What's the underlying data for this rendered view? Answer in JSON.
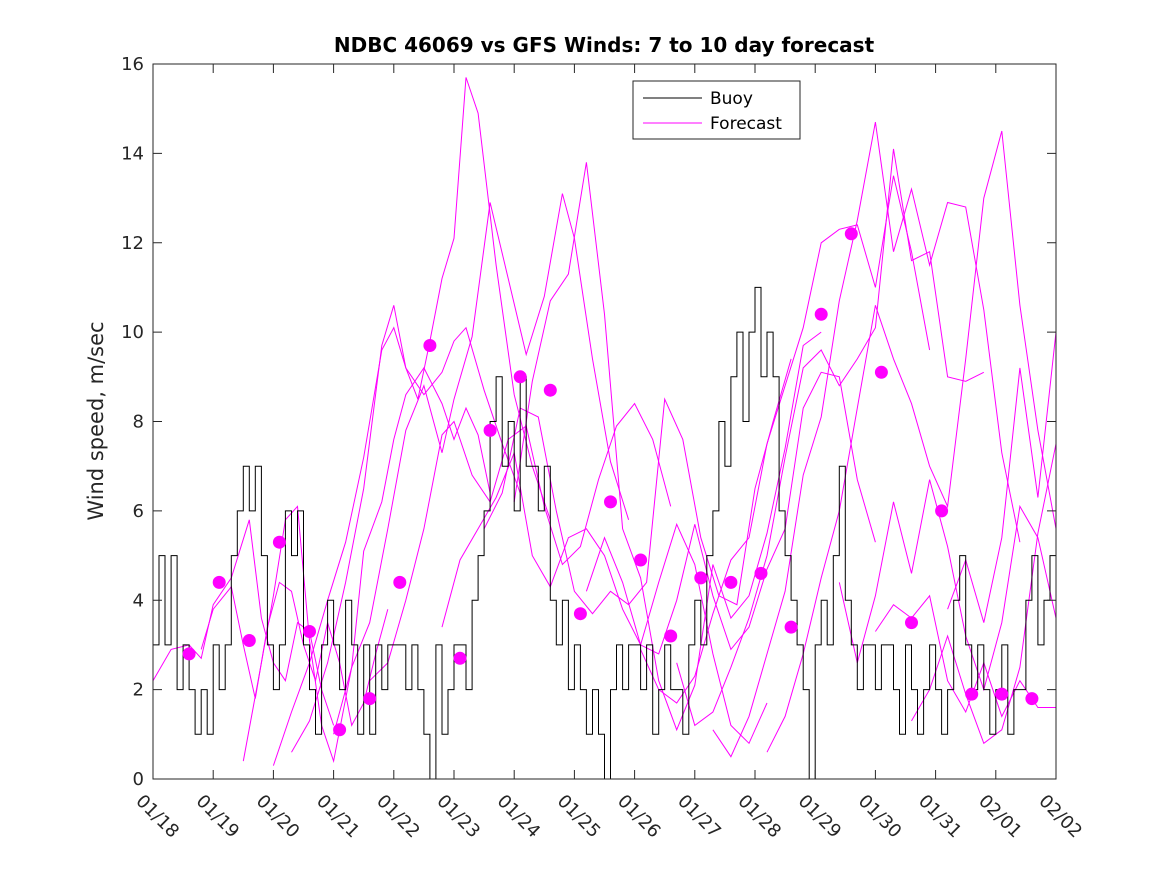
{
  "chart_data": {
    "type": "line",
    "title": "NDBC 46069 vs GFS Winds: 7 to 10 day forecast",
    "xlabel": "",
    "ylabel": "Wind speed, m/sec",
    "xlim": [
      0,
      15
    ],
    "ylim": [
      0,
      16
    ],
    "x_tick_values": [
      0,
      1,
      2,
      3,
      4,
      5,
      6,
      7,
      8,
      9,
      10,
      11,
      12,
      13,
      14,
      15
    ],
    "x_tick_labels": [
      "01/18",
      "01/19",
      "01/20",
      "01/21",
      "01/22",
      "01/23",
      "01/24",
      "01/25",
      "01/26",
      "01/27",
      "01/28",
      "01/29",
      "01/30",
      "01/31",
      "02/01",
      "02/02"
    ],
    "y_ticks": [
      0,
      2,
      4,
      6,
      8,
      10,
      12,
      14,
      16
    ],
    "legend": {
      "location": "top-center",
      "entries": [
        "Buoy",
        "Forecast"
      ]
    },
    "colors": {
      "buoy": "#000000",
      "forecast": "#ff00ff",
      "axes": "#262626"
    },
    "buoy": {
      "name": "Buoy",
      "x": [
        0.0,
        0.1,
        0.2,
        0.3,
        0.4,
        0.5,
        0.6,
        0.7,
        0.8,
        0.9,
        1.0,
        1.1,
        1.2,
        1.3,
        1.4,
        1.5,
        1.6,
        1.7,
        1.8,
        1.9,
        2.0,
        2.1,
        2.2,
        2.3,
        2.4,
        2.5,
        2.6,
        2.7,
        2.8,
        2.9,
        3.0,
        3.1,
        3.2,
        3.3,
        3.4,
        3.5,
        3.6,
        3.7,
        3.8,
        3.9,
        4.0,
        4.1,
        4.2,
        4.3,
        4.4,
        4.5,
        4.6,
        4.7,
        4.8,
        4.9,
        5.0,
        5.1,
        5.2,
        5.3,
        5.4,
        5.5,
        5.6,
        5.7,
        5.8,
        5.9,
        6.0,
        6.1,
        6.2,
        6.3,
        6.4,
        6.5,
        6.6,
        6.7,
        6.8,
        6.9,
        7.0,
        7.1,
        7.2,
        7.3,
        7.4,
        7.5,
        7.6,
        7.7,
        7.8,
        7.9,
        8.0,
        8.1,
        8.2,
        8.3,
        8.4,
        8.5,
        8.6,
        8.7,
        8.8,
        8.9,
        9.0,
        9.1,
        9.2,
        9.3,
        9.4,
        9.5,
        9.6,
        9.7,
        9.8,
        9.9,
        10.0,
        10.1,
        10.2,
        10.3,
        10.4,
        10.5,
        10.6,
        10.7,
        10.8,
        10.9,
        11.0,
        11.1,
        11.2,
        11.3,
        11.4,
        11.5,
        11.6,
        11.7,
        11.8,
        11.9,
        12.0,
        12.1,
        12.2,
        12.3,
        12.4,
        12.5,
        12.6,
        12.7,
        12.8,
        12.9,
        13.0,
        13.1,
        13.2,
        13.3,
        13.4,
        13.5,
        13.6,
        13.7,
        13.8,
        13.9,
        14.0,
        14.1,
        14.2,
        14.3,
        14.4,
        14.5,
        14.6,
        14.7,
        14.8,
        14.9,
        15.0
      ],
      "values": [
        3,
        5,
        3,
        5,
        2,
        3,
        2,
        1,
        2,
        1,
        3,
        2,
        3,
        5,
        6,
        7,
        6,
        7,
        5,
        3,
        2,
        3,
        6,
        5,
        6,
        3,
        2,
        1,
        3,
        4,
        3,
        2,
        4,
        3,
        1,
        3,
        1,
        3,
        2,
        3,
        3,
        3,
        2,
        3,
        2,
        1,
        0,
        3,
        1,
        2,
        3,
        3,
        2,
        4,
        5,
        6,
        8,
        9,
        7,
        8,
        6,
        9,
        7,
        7,
        6,
        7,
        4,
        3,
        4,
        2,
        3,
        2,
        1,
        2,
        1,
        0,
        2,
        3,
        2,
        3,
        3,
        2,
        3,
        1,
        2,
        3,
        2,
        2,
        1,
        3,
        4,
        3,
        5,
        6,
        8,
        7,
        9,
        10,
        8,
        10,
        11,
        9,
        10,
        9,
        6,
        5,
        4,
        3,
        2,
        0,
        3,
        4,
        3,
        5,
        7,
        4,
        3,
        2,
        3,
        3,
        2,
        3,
        3,
        2,
        1,
        3,
        2,
        1,
        2,
        3,
        2,
        1,
        2,
        4,
        5,
        3,
        2,
        3,
        2,
        1,
        2,
        3,
        1,
        2,
        2,
        4,
        5,
        3,
        4,
        5,
        4
      ]
    },
    "forecast_series": [
      {
        "name": "Forecast",
        "x": [
          0.0,
          0.3,
          0.6,
          0.8,
          1.0,
          1.3,
          1.6,
          1.8,
          2.0,
          2.2,
          2.4,
          2.6,
          2.8,
          3.0
        ],
        "values": [
          2.2,
          2.9,
          3.0,
          2.7,
          3.9,
          4.5,
          5.8,
          3.6,
          2.6,
          2.2,
          3.5,
          3.3,
          2.0,
          1.2
        ]
      },
      {
        "name": "Forecast",
        "x": [
          0.8,
          1.0,
          1.3,
          1.5,
          1.7,
          1.9,
          2.1,
          2.3,
          2.5,
          2.7,
          2.9,
          3.1,
          3.3,
          3.5,
          3.7,
          3.9
        ],
        "values": [
          2.9,
          3.8,
          4.3,
          3.0,
          1.8,
          3.4,
          4.4,
          4.2,
          3.0,
          2.2,
          3.5,
          2.6,
          1.2,
          1.7,
          2.8,
          3.8
        ]
      },
      {
        "name": "Forecast",
        "x": [
          1.5,
          1.8,
          2.0,
          2.2,
          2.4,
          2.6,
          2.8,
          3.0,
          3.3,
          3.5,
          3.8,
          4.0,
          4.2,
          4.5,
          4.8,
          5.0,
          5.2,
          5.4,
          5.6
        ],
        "values": [
          0.4,
          2.6,
          4.1,
          5.8,
          6.1,
          3.1,
          1.2,
          0.4,
          2.5,
          5.1,
          6.2,
          7.6,
          8.6,
          9.2,
          8.4,
          7.6,
          8.3,
          7.7,
          6.4
        ]
      },
      {
        "name": "Forecast",
        "x": [
          2.0,
          2.3,
          2.6,
          2.9,
          3.2,
          3.5,
          3.8,
          4.0,
          4.2,
          4.5,
          4.8,
          5.0,
          5.2,
          5.5,
          5.8,
          6.1
        ],
        "values": [
          0.3,
          1.5,
          2.6,
          4.0,
          5.3,
          7.2,
          9.6,
          10.1,
          9.2,
          8.6,
          9.1,
          9.8,
          10.1,
          8.7,
          7.5,
          6.4
        ]
      },
      {
        "name": "Forecast",
        "x": [
          2.3,
          2.6,
          2.9,
          3.2,
          3.5,
          3.8,
          4.0,
          4.2,
          4.4,
          4.6,
          4.8,
          5.0,
          5.2,
          5.4,
          5.7,
          6.0,
          6.3,
          6.6
        ],
        "values": [
          0.6,
          1.3,
          2.6,
          4.4,
          6.5,
          9.7,
          10.6,
          9.2,
          8.5,
          9.8,
          11.2,
          12.1,
          15.7,
          14.9,
          11.5,
          8.6,
          7.0,
          5.8
        ]
      },
      {
        "name": "Forecast",
        "x": [
          3.0,
          3.3,
          3.6,
          3.9,
          4.2,
          4.5,
          4.8,
          5.0,
          5.3,
          5.6,
          5.9,
          6.2,
          6.5,
          6.8,
          7.0,
          7.3,
          7.6,
          7.9
        ],
        "values": [
          1.0,
          2.5,
          3.5,
          5.6,
          7.8,
          8.8,
          7.3,
          8.5,
          9.9,
          12.9,
          11.2,
          9.5,
          10.8,
          13.1,
          12.1,
          9.4,
          7.1,
          5.8
        ]
      },
      {
        "name": "Forecast",
        "x": [
          3.6,
          3.9,
          4.2,
          4.5,
          4.8,
          5.0,
          5.3,
          5.6,
          5.9,
          6.2,
          6.5,
          6.8,
          7.1,
          7.4,
          7.7,
          8.0,
          8.3,
          8.6
        ],
        "values": [
          2.2,
          2.6,
          4.0,
          5.6,
          7.7,
          8.0,
          6.8,
          6.2,
          7.6,
          7.9,
          6.1,
          4.8,
          5.2,
          6.7,
          7.9,
          8.4,
          7.6,
          6.1
        ]
      },
      {
        "name": "Forecast",
        "x": [
          4.8,
          5.1,
          5.4,
          5.7,
          6.0,
          6.3,
          6.6,
          6.9,
          7.2,
          7.5,
          7.8,
          8.1,
          8.4,
          8.7,
          9.0,
          9.3,
          9.6,
          9.9,
          10.2
        ],
        "values": [
          3.4,
          4.9,
          5.6,
          6.3,
          7.3,
          5.0,
          4.3,
          5.4,
          5.6,
          5.0,
          3.8,
          3.0,
          4.4,
          5.7,
          4.8,
          2.8,
          1.2,
          0.8,
          1.7
        ]
      },
      {
        "name": "Forecast",
        "x": [
          5.5,
          5.8,
          6.1,
          6.4,
          6.7,
          7.0,
          7.3,
          7.6,
          7.9,
          8.2,
          8.5,
          8.8,
          9.1,
          9.4,
          9.7,
          10.0,
          10.3,
          10.6
        ],
        "values": [
          5.6,
          6.4,
          8.3,
          8.1,
          6.0,
          4.2,
          3.7,
          4.2,
          3.9,
          4.4,
          8.5,
          7.6,
          5.4,
          4.1,
          3.9,
          6.5,
          8.0,
          9.4
        ]
      },
      {
        "name": "Forecast",
        "x": [
          6.0,
          6.3,
          6.6,
          6.9,
          7.2,
          7.5,
          7.8,
          8.1,
          8.4,
          8.7,
          9.0,
          9.3,
          9.6,
          9.9,
          10.2,
          10.5,
          10.8,
          11.1
        ],
        "values": [
          6.2,
          8.9,
          10.7,
          11.3,
          13.8,
          10.4,
          5.6,
          4.5,
          2.2,
          1.1,
          2.1,
          4.8,
          3.6,
          4.1,
          5.5,
          7.4,
          9.7,
          10.0
        ]
      },
      {
        "name": "Forecast",
        "x": [
          7.2,
          7.5,
          7.8,
          8.1,
          8.4,
          8.7,
          9.0,
          9.3,
          9.6,
          9.9,
          10.2,
          10.5,
          10.8,
          11.1,
          11.4,
          11.7,
          12.0
        ],
        "values": [
          4.2,
          5.4,
          4.4,
          3.0,
          2.8,
          4.0,
          5.7,
          4.1,
          2.9,
          3.4,
          4.7,
          5.6,
          8.3,
          9.1,
          9.0,
          6.7,
          5.3
        ]
      },
      {
        "name": "Forecast",
        "x": [
          8.1,
          8.4,
          8.7,
          9.0,
          9.3,
          9.6,
          9.9,
          10.2,
          10.5,
          10.8,
          11.1,
          11.4,
          11.7,
          12.0,
          12.3,
          12.6,
          12.9
        ],
        "values": [
          2.9,
          2.0,
          1.7,
          2.3,
          3.7,
          4.9,
          5.4,
          7.5,
          8.8,
          10.1,
          12.0,
          12.3,
          12.4,
          11.0,
          13.5,
          11.8,
          9.6
        ]
      },
      {
        "name": "Forecast",
        "x": [
          8.7,
          9.0,
          9.3,
          9.6,
          9.9,
          10.2,
          10.5,
          10.8,
          11.1,
          11.4,
          11.7,
          12.0,
          12.3,
          12.6,
          12.9,
          13.2,
          13.5,
          13.8
        ],
        "values": [
          2.6,
          1.2,
          1.5,
          2.5,
          3.6,
          5.0,
          7.2,
          9.2,
          9.6,
          8.8,
          9.4,
          10.1,
          14.1,
          11.6,
          11.8,
          9.0,
          8.9,
          9.1
        ]
      },
      {
        "name": "Forecast",
        "x": [
          9.3,
          9.6,
          9.9,
          10.2,
          10.5,
          10.8,
          11.1,
          11.4,
          11.7,
          12.0,
          12.3,
          12.6,
          12.9,
          13.2,
          13.5,
          13.8,
          14.1,
          14.4
        ],
        "values": [
          1.1,
          0.5,
          1.4,
          2.8,
          4.2,
          6.8,
          8.1,
          10.7,
          12.5,
          14.7,
          11.8,
          13.2,
          11.5,
          12.9,
          12.8,
          10.5,
          7.3,
          5.3
        ]
      },
      {
        "name": "Forecast",
        "x": [
          10.2,
          10.5,
          10.8,
          11.1,
          11.4,
          11.7,
          12.0,
          12.3,
          12.6,
          12.9,
          13.2,
          13.5,
          13.8,
          14.1,
          14.4,
          14.7,
          15.0
        ],
        "values": [
          0.6,
          1.4,
          2.8,
          4.5,
          6.0,
          8.3,
          10.6,
          9.4,
          8.4,
          7.0,
          6.1,
          9.4,
          13.0,
          14.5,
          10.6,
          7.8,
          5.6
        ]
      },
      {
        "name": "Forecast",
        "x": [
          11.4,
          11.7,
          12.0,
          12.3,
          12.6,
          12.9,
          13.2,
          13.5,
          13.8,
          14.1,
          14.4,
          14.7,
          15.0
        ],
        "values": [
          4.4,
          2.6,
          4.1,
          6.2,
          4.6,
          6.7,
          5.2,
          3.2,
          2.0,
          3.5,
          6.1,
          5.4,
          3.6
        ]
      },
      {
        "name": "Forecast",
        "x": [
          12.0,
          12.3,
          12.6,
          12.9,
          13.2,
          13.5,
          13.8,
          14.1,
          14.4,
          14.7,
          15.0
        ],
        "values": [
          3.3,
          3.9,
          3.6,
          4.1,
          2.2,
          1.5,
          2.6,
          1.4,
          2.2,
          1.6,
          1.6
        ]
      },
      {
        "name": "Forecast",
        "x": [
          12.6,
          12.9,
          13.2,
          13.5,
          13.8,
          14.1,
          14.4,
          14.7,
          15.0
        ],
        "values": [
          1.3,
          2.0,
          3.2,
          1.9,
          0.8,
          1.1,
          2.5,
          5.5,
          7.5
        ]
      },
      {
        "name": "Forecast",
        "x": [
          13.2,
          13.5,
          13.8,
          14.1,
          14.4,
          14.7,
          15.0
        ],
        "values": [
          3.8,
          4.9,
          3.5,
          5.4,
          9.2,
          6.3,
          10.0
        ]
      }
    ],
    "forecast_markers": {
      "x": [
        0.6,
        1.1,
        1.6,
        2.1,
        2.6,
        3.1,
        3.6,
        4.1,
        4.6,
        5.1,
        5.6,
        6.1,
        6.6,
        7.1,
        7.6,
        8.1,
        8.6,
        9.1,
        9.6,
        10.1,
        10.6,
        11.1,
        11.6,
        12.1,
        12.6,
        13.1,
        13.6,
        14.1,
        14.6
      ],
      "values": [
        2.8,
        4.4,
        3.1,
        5.3,
        3.3,
        1.1,
        1.8,
        4.4,
        9.7,
        2.7,
        7.8,
        9.0,
        8.7,
        3.7,
        6.2,
        4.9,
        3.2,
        4.5,
        4.4,
        4.6,
        3.4,
        10.4,
        12.2,
        9.1,
        3.5,
        6.0,
        1.9,
        1.9,
        1.8
      ]
    }
  }
}
